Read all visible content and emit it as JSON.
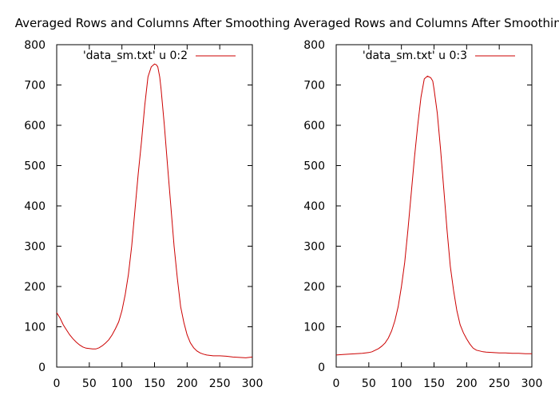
{
  "chart_data": [
    {
      "type": "line",
      "title": "Averaged Rows and Columns After Smoothing",
      "xlabel": "",
      "ylabel": "",
      "xlim": [
        0,
        300
      ],
      "ylim": [
        0,
        800
      ],
      "xticks": [
        0,
        50,
        100,
        150,
        200,
        250,
        300
      ],
      "yticks": [
        0,
        100,
        200,
        300,
        400,
        500,
        600,
        700,
        800
      ],
      "grid": false,
      "legend_position": "top-right",
      "series": [
        {
          "name": "'data_sm.txt' u 0:2",
          "color": "#cc0000",
          "x": [
            0,
            5,
            10,
            15,
            20,
            25,
            30,
            35,
            40,
            45,
            50,
            55,
            60,
            65,
            70,
            75,
            80,
            85,
            90,
            95,
            100,
            105,
            110,
            115,
            120,
            125,
            130,
            135,
            140,
            145,
            150,
            153,
            155,
            158,
            160,
            165,
            170,
            175,
            180,
            185,
            190,
            195,
            200,
            205,
            210,
            215,
            220,
            225,
            230,
            240,
            250,
            260,
            270,
            280,
            290,
            300
          ],
          "y": [
            135,
            122,
            105,
            92,
            80,
            70,
            62,
            55,
            50,
            47,
            46,
            45,
            45,
            48,
            53,
            60,
            68,
            80,
            95,
            112,
            140,
            180,
            230,
            300,
            390,
            480,
            560,
            650,
            720,
            745,
            752,
            750,
            745,
            720,
            690,
            600,
            500,
            400,
            300,
            220,
            150,
            110,
            80,
            60,
            48,
            40,
            35,
            32,
            30,
            28,
            28,
            27,
            25,
            24,
            23,
            25
          ]
        },
        {
          "name": "'data_sm.txt' u 0:3",
          "color": "#cc0000",
          "x": [
            0,
            10,
            20,
            30,
            40,
            50,
            55,
            60,
            65,
            70,
            75,
            80,
            85,
            90,
            95,
            100,
            105,
            110,
            115,
            120,
            125,
            130,
            135,
            140,
            145,
            148,
            150,
            155,
            160,
            165,
            170,
            175,
            180,
            185,
            190,
            195,
            200,
            205,
            210,
            215,
            220,
            225,
            230,
            240,
            250,
            260,
            270,
            280,
            290,
            300
          ],
          "y": [
            30,
            31,
            32,
            33,
            34,
            36,
            38,
            42,
            46,
            52,
            60,
            72,
            90,
            115,
            150,
            200,
            260,
            340,
            430,
            520,
            600,
            670,
            715,
            722,
            718,
            710,
            690,
            630,
            540,
            440,
            340,
            250,
            190,
            140,
            105,
            85,
            70,
            57,
            47,
            42,
            40,
            38,
            37,
            36,
            35,
            35,
            34,
            34,
            33,
            33
          ]
        }
      ]
    }
  ]
}
